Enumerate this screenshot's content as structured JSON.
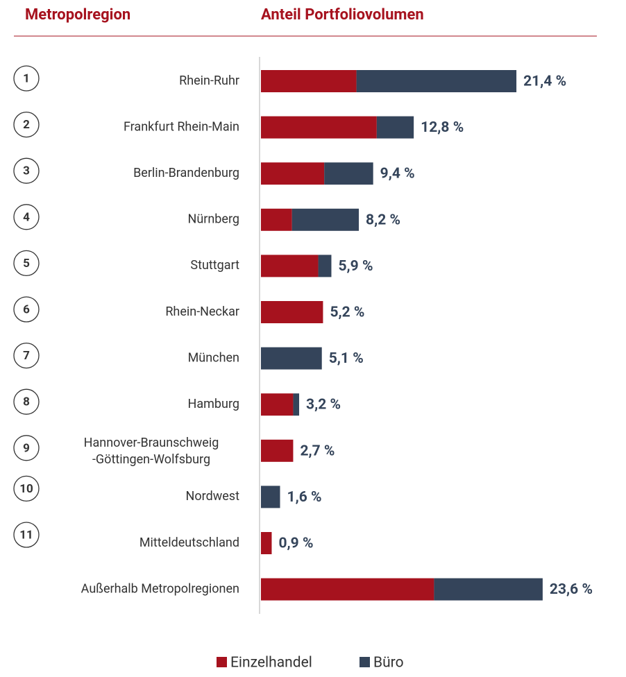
{
  "chart_data": {
    "type": "stacked-bar-horizontal",
    "headers": [
      "Metropolregion",
      "Anteil Portfoliovolumen"
    ],
    "ranks": [
      "1",
      "2",
      "3",
      "4",
      "5",
      "6",
      "7",
      "8",
      "9",
      "10",
      "11"
    ],
    "categories": [
      "Rhein-Ruhr",
      "Frankfurt Rhein-Main",
      "Berlin-Brandenburg",
      "Nürnberg",
      "Stuttgart",
      "Rhein-Neckar",
      "München",
      "Hamburg",
      [
        "Hannover-Braunschweig",
        "-Göttingen-Wolfsburg"
      ],
      "Nordwest",
      "Mitteldeutschland",
      "Außerhalb Metropolregionen"
    ],
    "series": [
      {
        "name": "Einzelhandel",
        "color": "#a6121e",
        "values": [
          8.0,
          9.7,
          5.3,
          2.6,
          4.8,
          5.2,
          0,
          2.7,
          2.7,
          0,
          0.9,
          14.5
        ]
      },
      {
        "name": "Büro",
        "color": "#34445a",
        "values": [
          13.4,
          3.1,
          4.1,
          5.6,
          1.1,
          0,
          5.1,
          0.5,
          0,
          1.6,
          0,
          9.1
        ]
      }
    ],
    "totals": [
      21.4,
      12.8,
      9.4,
      8.2,
      5.9,
      5.2,
      5.1,
      3.2,
      2.7,
      1.6,
      0.9,
      23.6
    ],
    "value_labels": [
      "21,4 %",
      "12,8 %",
      "9,4 %",
      "8,2 %",
      "5,9 %",
      "5,2 %",
      "5,1 %",
      "3,2 %",
      "2,7 %",
      "1,6 %",
      "0,9 %",
      "23,6 %"
    ],
    "xlim": [
      0,
      30
    ]
  }
}
